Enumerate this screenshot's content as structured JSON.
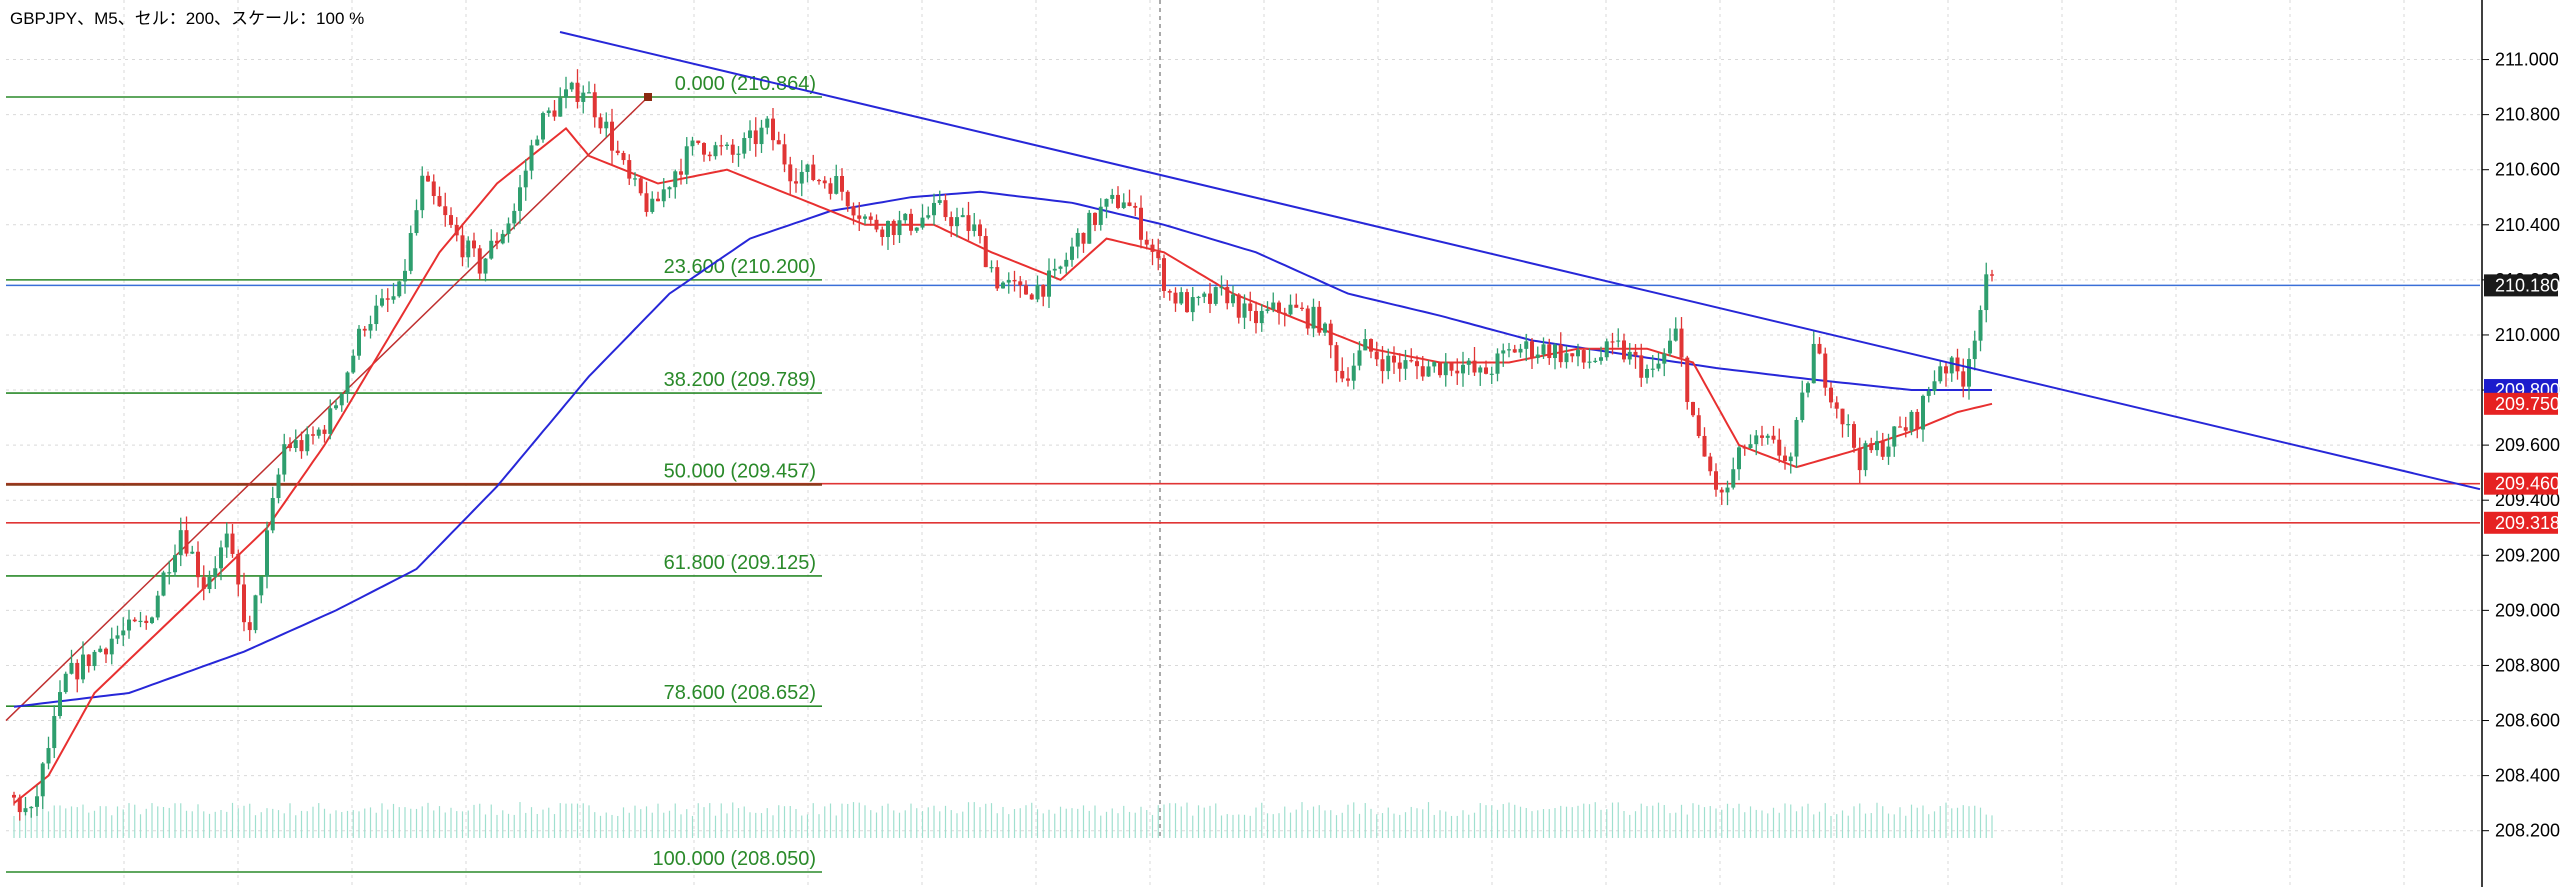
{
  "title": "GBPJPY、M5、セル：200、スケール：100 %",
  "colors": {
    "bull": "#2e9e6e",
    "bear": "#e03535",
    "fib": "#2a8a2a",
    "ma_short": "#e83030",
    "ma_long": "#2727d8",
    "trendline": "#2727d8",
    "hline_blue": "#3a6fd8",
    "hline_red": "#e03535",
    "volume": "#9fe0cf",
    "grid": "#d9d9d9"
  },
  "chart_data": {
    "type": "candlestick",
    "symbol": "GBPJPY",
    "timeframe": "M5",
    "ylim": [
      208.05,
      211.1
    ],
    "y_ticks": [
      "211.000",
      "210.800",
      "210.600",
      "210.400",
      "210.200",
      "210.000",
      "209.800",
      "209.600",
      "209.400",
      "209.200",
      "209.000",
      "208.800",
      "208.600",
      "208.400",
      "208.200"
    ],
    "price_tags": [
      {
        "label": "210.180",
        "value": 210.18,
        "color": "#1a1a1a"
      },
      {
        "label": "209.800",
        "value": 209.8,
        "color": "#1c1ccc"
      },
      {
        "label": "209.750",
        "value": 209.75,
        "color": "#e62222"
      },
      {
        "label": "209.460",
        "value": 209.46,
        "color": "#e62222"
      },
      {
        "label": "209.318",
        "value": 209.318,
        "color": "#e62222"
      }
    ],
    "fibonacci": [
      {
        "label": "0.000 (210.864)",
        "level": 0.0,
        "price": 210.864
      },
      {
        "label": "23.600 (210.200)",
        "level": 23.6,
        "price": 210.2
      },
      {
        "label": "38.200 (209.789)",
        "level": 38.2,
        "price": 209.789
      },
      {
        "label": "50.000 (209.457)",
        "level": 50.0,
        "price": 209.457
      },
      {
        "label": "61.800 (209.125)",
        "level": 61.8,
        "price": 209.125
      },
      {
        "label": "78.600 (208.652)",
        "level": 78.6,
        "price": 208.652
      },
      {
        "label": "100.000 (208.050)",
        "level": 100.0,
        "price": 208.05
      }
    ],
    "horizontal_lines": [
      {
        "price": 210.18,
        "color": "#3a6fd8"
      },
      {
        "price": 209.46,
        "color": "#e03535"
      },
      {
        "price": 209.318,
        "color": "#e03535"
      }
    ],
    "trendline": {
      "from": {
        "bar": 0.22,
        "price": 211.1
      },
      "to": {
        "bar": 1.0,
        "price": 209.44
      }
    },
    "path": [
      [
        0,
        208.33
      ],
      [
        4,
        208.25
      ],
      [
        10,
        208.75
      ],
      [
        18,
        208.9
      ],
      [
        24,
        208.95
      ],
      [
        30,
        209.3
      ],
      [
        34,
        209.1
      ],
      [
        38,
        209.25
      ],
      [
        42,
        208.9
      ],
      [
        44,
        209.15
      ],
      [
        48,
        209.6
      ],
      [
        52,
        209.6
      ],
      [
        56,
        209.7
      ],
      [
        62,
        210.05
      ],
      [
        68,
        210.15
      ],
      [
        72,
        210.55
      ],
      [
        78,
        210.35
      ],
      [
        82,
        210.25
      ],
      [
        88,
        210.45
      ],
      [
        92,
        210.75
      ],
      [
        96,
        210.85
      ],
      [
        100,
        210.9
      ],
      [
        104,
        210.75
      ],
      [
        108,
        210.55
      ],
      [
        112,
        210.45
      ],
      [
        116,
        210.6
      ],
      [
        120,
        210.7
      ],
      [
        126,
        210.65
      ],
      [
        132,
        210.75
      ],
      [
        136,
        210.6
      ],
      [
        144,
        210.55
      ],
      [
        150,
        210.4
      ],
      [
        156,
        210.4
      ],
      [
        162,
        210.45
      ],
      [
        168,
        210.38
      ],
      [
        172,
        210.2
      ],
      [
        176,
        210.15
      ],
      [
        182,
        210.2
      ],
      [
        186,
        210.35
      ],
      [
        190,
        210.45
      ],
      [
        194,
        210.5
      ],
      [
        198,
        210.35
      ],
      [
        202,
        210.15
      ],
      [
        206,
        210.1
      ],
      [
        212,
        210.15
      ],
      [
        216,
        210.05
      ],
      [
        222,
        210.1
      ],
      [
        228,
        210.05
      ],
      [
        232,
        209.85
      ],
      [
        236,
        209.95
      ],
      [
        240,
        209.9
      ],
      [
        246,
        209.88
      ],
      [
        252,
        209.9
      ],
      [
        256,
        209.85
      ],
      [
        262,
        209.95
      ],
      [
        268,
        209.95
      ],
      [
        274,
        209.9
      ],
      [
        280,
        209.95
      ],
      [
        286,
        209.85
      ],
      [
        290,
        210.0
      ],
      [
        294,
        209.6
      ],
      [
        298,
        209.4
      ],
      [
        302,
        209.6
      ],
      [
        306,
        209.6
      ],
      [
        310,
        209.55
      ],
      [
        314,
        209.95
      ],
      [
        318,
        209.75
      ],
      [
        322,
        209.55
      ],
      [
        326,
        209.6
      ],
      [
        332,
        209.7
      ],
      [
        336,
        209.9
      ],
      [
        340,
        209.85
      ],
      [
        344,
        210.18
      ]
    ],
    "ma_short": [
      [
        0,
        208.3
      ],
      [
        6,
        208.4
      ],
      [
        14,
        208.7
      ],
      [
        24,
        208.9
      ],
      [
        34,
        209.1
      ],
      [
        44,
        209.3
      ],
      [
        54,
        209.6
      ],
      [
        64,
        209.95
      ],
      [
        74,
        210.3
      ],
      [
        84,
        210.55
      ],
      [
        96,
        210.75
      ],
      [
        100,
        210.65
      ],
      [
        112,
        210.55
      ],
      [
        124,
        210.6
      ],
      [
        136,
        210.5
      ],
      [
        148,
        210.4
      ],
      [
        160,
        210.4
      ],
      [
        170,
        210.3
      ],
      [
        182,
        210.2
      ],
      [
        190,
        210.35
      ],
      [
        200,
        210.3
      ],
      [
        212,
        210.15
      ],
      [
        224,
        210.05
      ],
      [
        236,
        209.95
      ],
      [
        248,
        209.9
      ],
      [
        260,
        209.9
      ],
      [
        272,
        209.95
      ],
      [
        284,
        209.95
      ],
      [
        292,
        209.9
      ],
      [
        300,
        209.6
      ],
      [
        310,
        209.52
      ],
      [
        320,
        209.58
      ],
      [
        330,
        209.65
      ],
      [
        338,
        209.72
      ],
      [
        344,
        209.75
      ]
    ],
    "ma_long": [
      [
        0,
        208.65
      ],
      [
        20,
        208.7
      ],
      [
        40,
        208.85
      ],
      [
        56,
        209.0
      ],
      [
        70,
        209.15
      ],
      [
        84,
        209.45
      ],
      [
        100,
        209.85
      ],
      [
        114,
        210.15
      ],
      [
        128,
        210.35
      ],
      [
        142,
        210.45
      ],
      [
        156,
        210.5
      ],
      [
        168,
        210.52
      ],
      [
        184,
        210.48
      ],
      [
        200,
        210.4
      ],
      [
        216,
        210.3
      ],
      [
        232,
        210.15
      ],
      [
        248,
        210.07
      ],
      [
        264,
        209.98
      ],
      [
        280,
        209.93
      ],
      [
        296,
        209.88
      ],
      [
        312,
        209.84
      ],
      [
        330,
        209.8
      ],
      [
        344,
        209.8
      ]
    ]
  }
}
